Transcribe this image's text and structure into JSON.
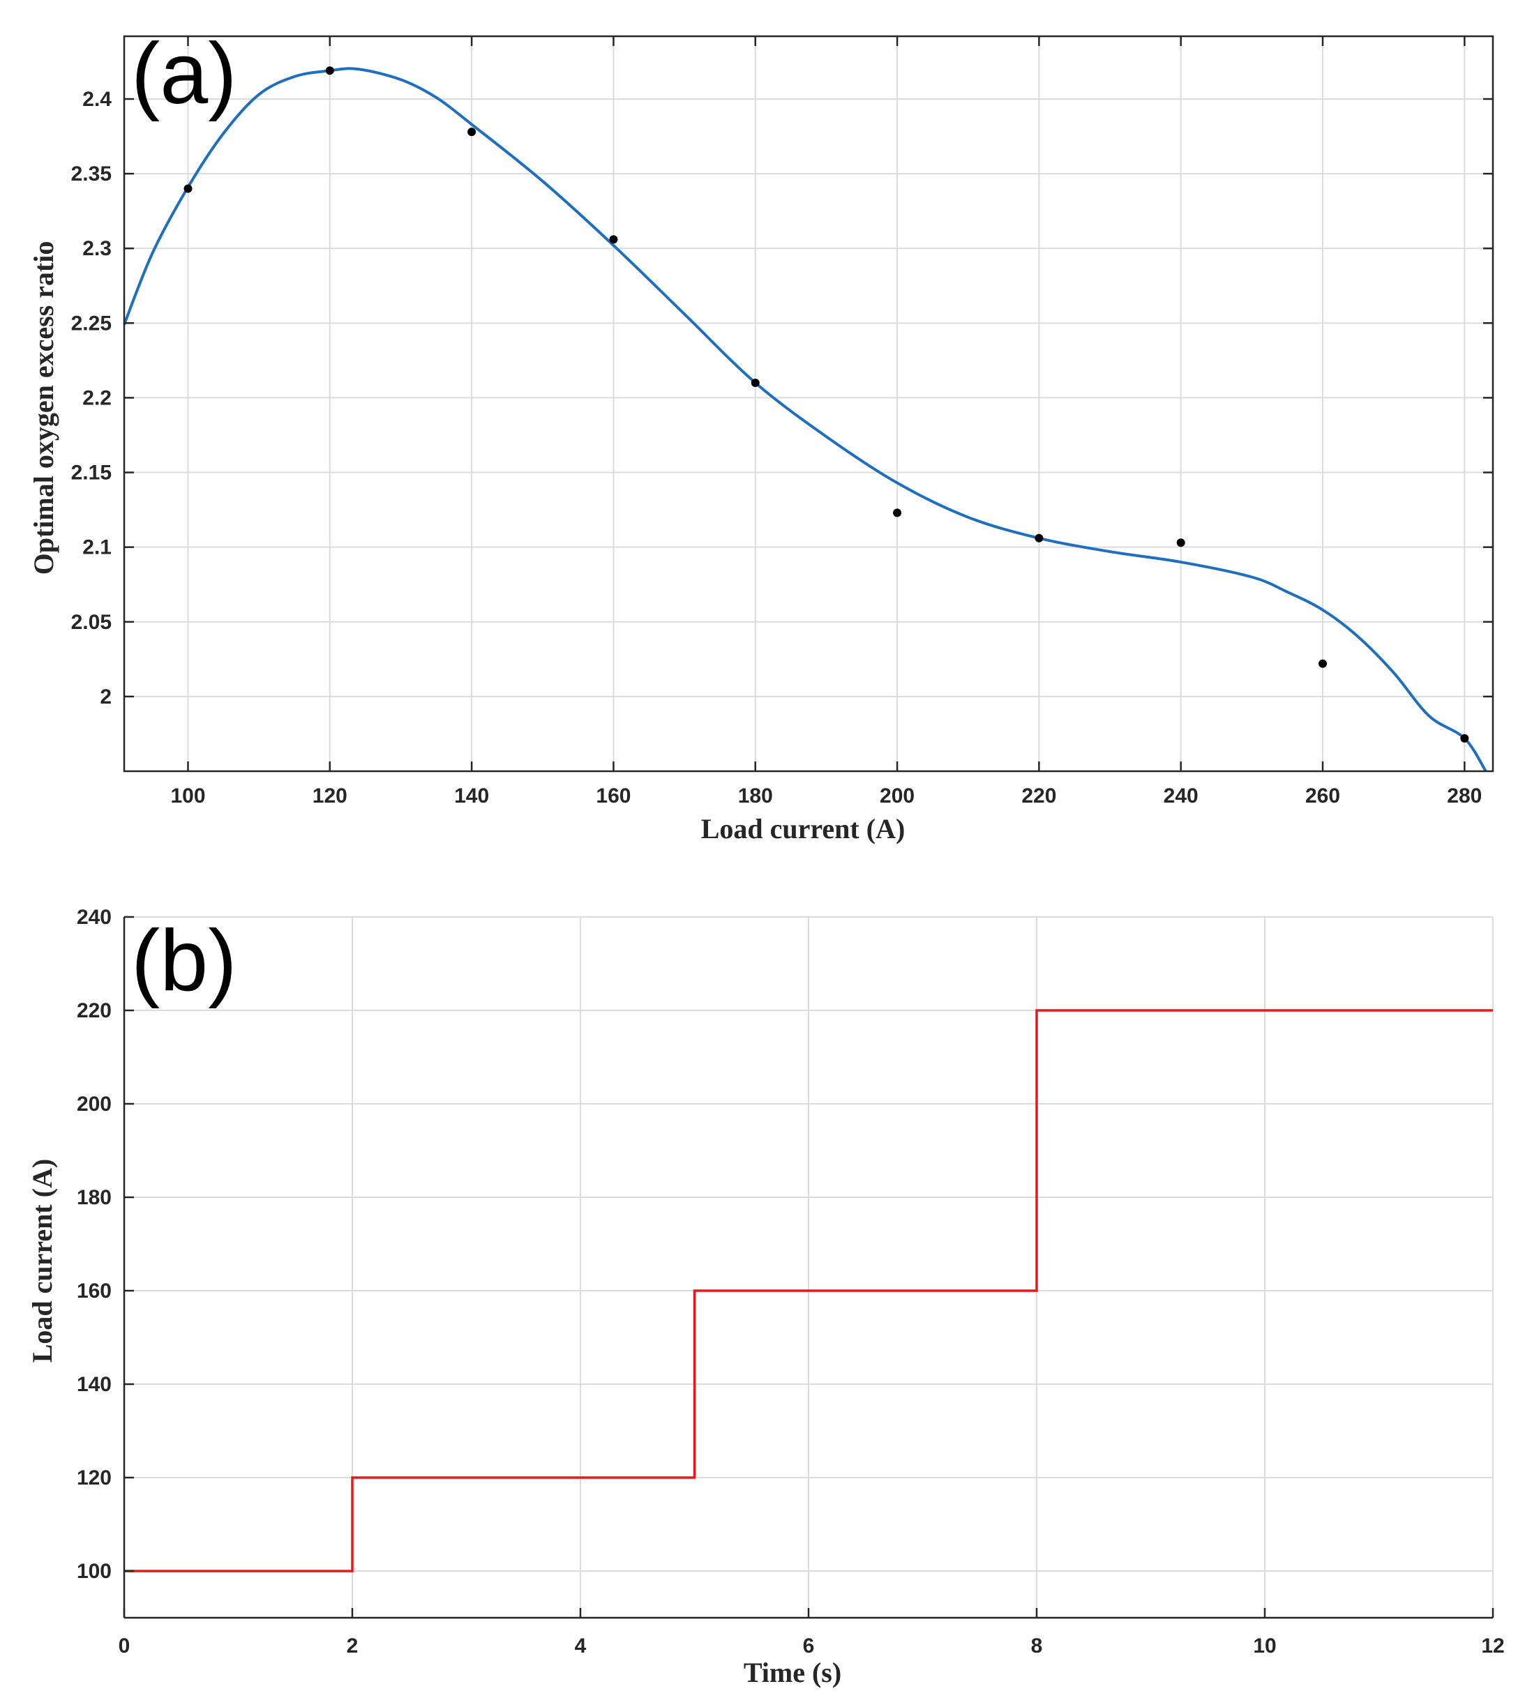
{
  "chart_data": [
    {
      "type": "line",
      "panel_label": "(a)",
      "xlabel": "Load current (A)",
      "ylabel": "Optimal oxygen excess ratio",
      "xlim": [
        91,
        284
      ],
      "ylim": [
        1.95,
        2.442
      ],
      "xticks": [
        100,
        120,
        140,
        160,
        180,
        200,
        220,
        240,
        260,
        280
      ],
      "yticks": [
        2,
        2.05,
        2.1,
        2.15,
        2.2,
        2.25,
        2.3,
        2.35,
        2.4
      ],
      "ytick_labels": [
        "2",
        "2.05",
        "2.1",
        "2.15",
        "2.2",
        "2.25",
        "2.3",
        "2.35",
        "2.4"
      ],
      "grid": true,
      "series": [
        {
          "name": "data points",
          "style": "markers",
          "color": "#000000",
          "x": [
            100,
            120,
            140,
            160,
            180,
            200,
            220,
            240,
            260,
            280
          ],
          "y": [
            2.34,
            2.419,
            2.378,
            2.306,
            2.21,
            2.123,
            2.106,
            2.103,
            2.022,
            1.972
          ]
        },
        {
          "name": "fitted curve",
          "style": "line",
          "color": "#1f6fbf",
          "x": [
            91,
            95,
            100,
            105,
            110,
            115,
            120,
            124,
            130,
            135,
            140,
            150,
            160,
            170,
            180,
            190,
            200,
            210,
            220,
            230,
            240,
            250,
            255,
            260,
            265,
            270,
            275,
            280,
            283
          ],
          "y": [
            2.249,
            2.297,
            2.341,
            2.377,
            2.403,
            2.415,
            2.419,
            2.42,
            2.413,
            2.401,
            2.383,
            2.345,
            2.302,
            2.256,
            2.21,
            2.174,
            2.143,
            2.12,
            2.106,
            2.097,
            2.09,
            2.08,
            2.07,
            2.058,
            2.04,
            2.016,
            1.987,
            1.972,
            1.95
          ]
        }
      ]
    },
    {
      "type": "line",
      "panel_label": "(b)",
      "xlabel": "Time (s)",
      "ylabel": "Load current (A)",
      "xlim": [
        0,
        12
      ],
      "ylim": [
        90,
        240
      ],
      "xticks": [
        0,
        2,
        4,
        6,
        8,
        10,
        12
      ],
      "yticks": [
        100,
        120,
        140,
        160,
        180,
        200,
        220,
        240
      ],
      "grid": true,
      "series": [
        {
          "name": "load current",
          "style": "step",
          "color": "#e41a1c",
          "x": [
            0,
            2,
            2,
            5,
            5,
            8,
            8,
            12
          ],
          "y": [
            100,
            100,
            120,
            120,
            160,
            160,
            220,
            220
          ]
        }
      ]
    }
  ]
}
